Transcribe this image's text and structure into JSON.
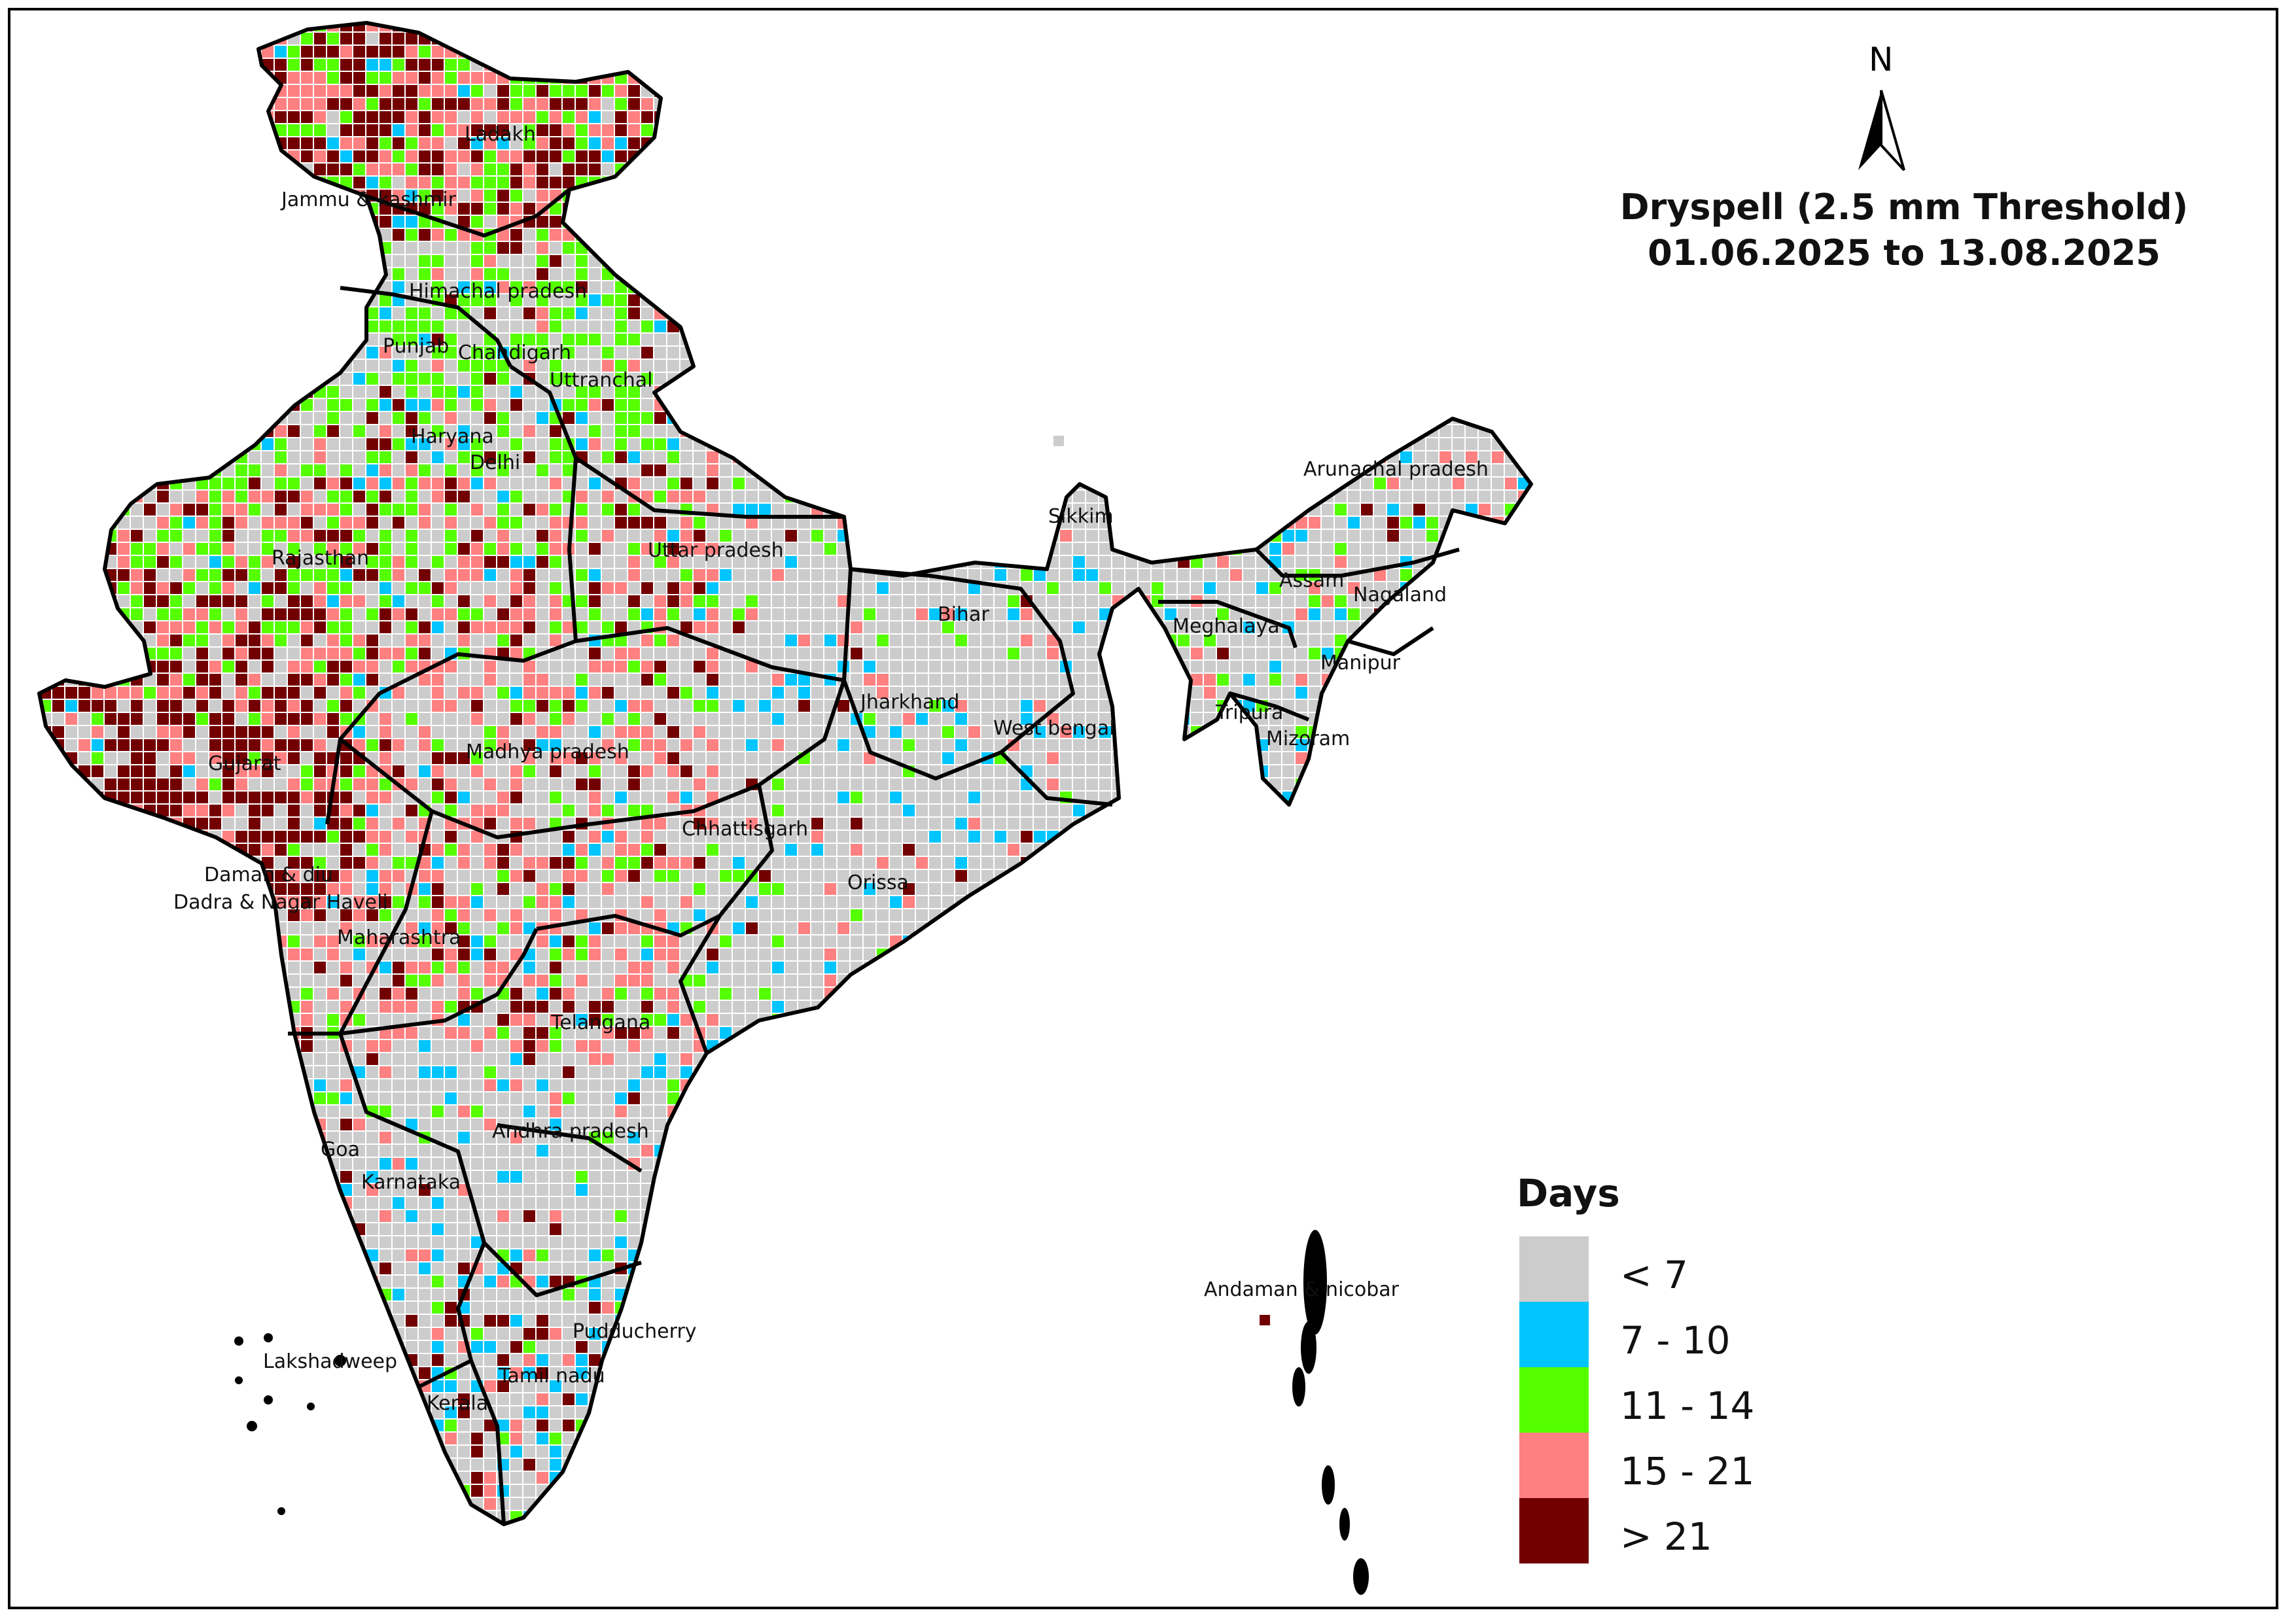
{
  "title": {
    "line1": "Dryspell (2.5 mm Threshold)",
    "line2": "01.06.2025 to 13.08.2025"
  },
  "north_arrow": {
    "label": "N"
  },
  "legend": {
    "title": "Days",
    "classes": [
      {
        "label": "< 7",
        "color": "#cccccc"
      },
      {
        "label": "7 - 10",
        "color": "#00c5ff"
      },
      {
        "label": "11 - 14",
        "color": "#55ff00"
      },
      {
        "label": "15 - 21",
        "color": "#ff8080"
      },
      {
        "label": "> 21",
        "color": "#730000"
      }
    ]
  },
  "states": [
    "Ladakh",
    "Jammu & kashmir",
    "Himachal pradesh",
    "Punjab",
    "Chandigarh",
    "Uttranchal",
    "Haryana",
    "Delhi",
    "Rajasthan",
    "Uttar pradesh",
    "Sikkim",
    "Arunachal pradesh",
    "Assam",
    "Nagaland",
    "Meghalaya",
    "Bihar",
    "Manipur",
    "Tripura",
    "Mizoram",
    "West bengal",
    "Jharkhand",
    "Gujarat",
    "Madhya pradesh",
    "Chhattisgarh",
    "Orissa",
    "Daman & diu",
    "Dadra & Nagar Haveli",
    "Maharashtra",
    "Telangana",
    "Andhra pradesh",
    "Goa",
    "Karnataka",
    "Andaman & nicobar",
    "Pudducherry",
    "Lakshadweep",
    "Tamil nadu",
    "Kerala"
  ]
}
